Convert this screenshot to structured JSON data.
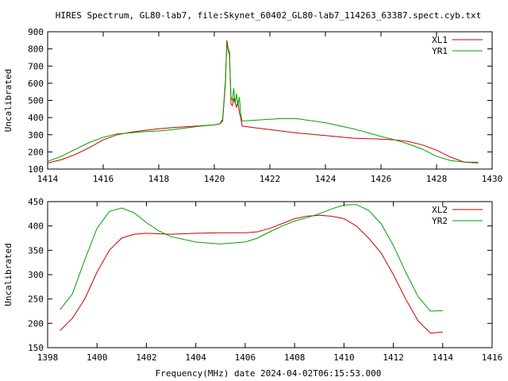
{
  "title": "HIRES Spectrum, GL80-lab7, file:Skynet_60402_GL80-lab7_114263_63387.spect.cyb.txt",
  "xlabel_bottom": "Frequency(MHz) date 2024-04-02T06:15:53.000",
  "colors": {
    "red": "#cc0000",
    "green": "#00a000"
  },
  "chart_data": [
    {
      "type": "line",
      "ylabel": "Uncalibrated",
      "xlim": [
        1414,
        1430
      ],
      "ylim": [
        100,
        900
      ],
      "xticks": [
        1414,
        1416,
        1418,
        1420,
        1422,
        1424,
        1426,
        1428,
        1430
      ],
      "yticks": [
        100,
        200,
        300,
        400,
        500,
        600,
        700,
        800,
        900
      ],
      "grid": false,
      "legend": "top-right",
      "series": [
        {
          "name": "XL1",
          "color": "#cc0000",
          "x": [
            1414,
            1414.5,
            1415,
            1415.5,
            1416,
            1416.5,
            1417,
            1417.5,
            1418,
            1418.5,
            1419,
            1419.5,
            1420,
            1420.2,
            1420.3,
            1420.4,
            1420.45,
            1420.5,
            1420.55,
            1420.6,
            1420.65,
            1420.7,
            1420.8,
            1420.85,
            1420.9,
            1420.95,
            1421,
            1421.5,
            1422,
            1423,
            1424,
            1425,
            1426,
            1426.5,
            1427,
            1427.5,
            1428,
            1428.5,
            1429,
            1429.5
          ],
          "y": [
            135,
            155,
            185,
            225,
            270,
            300,
            315,
            325,
            335,
            342,
            347,
            352,
            357,
            363,
            380,
            600,
            850,
            800,
            780,
            480,
            470,
            510,
            460,
            495,
            430,
            400,
            350,
            340,
            330,
            310,
            295,
            280,
            275,
            270,
            260,
            240,
            210,
            170,
            140,
            135
          ]
        },
        {
          "name": "YR1",
          "color": "#00a000",
          "x": [
            1414,
            1414.5,
            1415,
            1415.5,
            1416,
            1416.5,
            1417,
            1417.5,
            1418,
            1418.5,
            1419,
            1419.5,
            1420,
            1420.2,
            1420.3,
            1420.4,
            1420.45,
            1420.5,
            1420.55,
            1420.6,
            1420.65,
            1420.7,
            1420.75,
            1420.8,
            1420.85,
            1420.9,
            1420.95,
            1421,
            1421.5,
            1422,
            1422.5,
            1423,
            1424,
            1425,
            1426,
            1426.5,
            1427,
            1427.5,
            1428,
            1428.5,
            1429,
            1429.5
          ],
          "y": [
            145,
            175,
            215,
            255,
            285,
            305,
            312,
            318,
            322,
            330,
            340,
            350,
            357,
            365,
            390,
            620,
            830,
            790,
            760,
            520,
            500,
            570,
            480,
            540,
            470,
            520,
            420,
            380,
            385,
            390,
            395,
            393,
            370,
            335,
            290,
            270,
            245,
            215,
            175,
            150,
            140,
            140
          ]
        }
      ]
    },
    {
      "type": "line",
      "ylabel": "Uncalibrated",
      "xlim": [
        1398,
        1416
      ],
      "ylim": [
        150,
        450
      ],
      "xticks": [
        1398,
        1400,
        1402,
        1404,
        1406,
        1408,
        1410,
        1412,
        1414,
        1416
      ],
      "yticks": [
        150,
        200,
        250,
        300,
        350,
        400,
        450
      ],
      "grid": false,
      "legend": "top-right",
      "series": [
        {
          "name": "XL2",
          "color": "#cc0000",
          "x": [
            1398.5,
            1399,
            1399.5,
            1400,
            1400.5,
            1401,
            1401.5,
            1402,
            1402.5,
            1403,
            1404,
            1405,
            1406,
            1406.5,
            1407,
            1407.5,
            1408,
            1408.5,
            1409,
            1409.5,
            1410,
            1410.5,
            1411,
            1411.5,
            1412,
            1412.5,
            1413,
            1413.5,
            1414
          ],
          "y": [
            185,
            210,
            250,
            305,
            350,
            375,
            383,
            385,
            384,
            383,
            385,
            386,
            386,
            388,
            395,
            405,
            415,
            420,
            422,
            420,
            415,
            400,
            375,
            345,
            300,
            250,
            205,
            180,
            182
          ]
        },
        {
          "name": "YR2",
          "color": "#00a000",
          "x": [
            1398.5,
            1399,
            1399.5,
            1400,
            1400.5,
            1401,
            1401.5,
            1402,
            1402.5,
            1403,
            1404,
            1405,
            1406,
            1406.5,
            1407,
            1407.5,
            1408,
            1408.5,
            1409,
            1409.5,
            1410,
            1410.5,
            1411,
            1411.5,
            1412,
            1412.5,
            1413,
            1413.5,
            1414
          ],
          "y": [
            228,
            260,
            330,
            395,
            430,
            437,
            427,
            407,
            390,
            378,
            367,
            363,
            367,
            375,
            388,
            400,
            410,
            417,
            425,
            435,
            443,
            444,
            432,
            405,
            360,
            305,
            255,
            225,
            226
          ]
        }
      ]
    }
  ]
}
